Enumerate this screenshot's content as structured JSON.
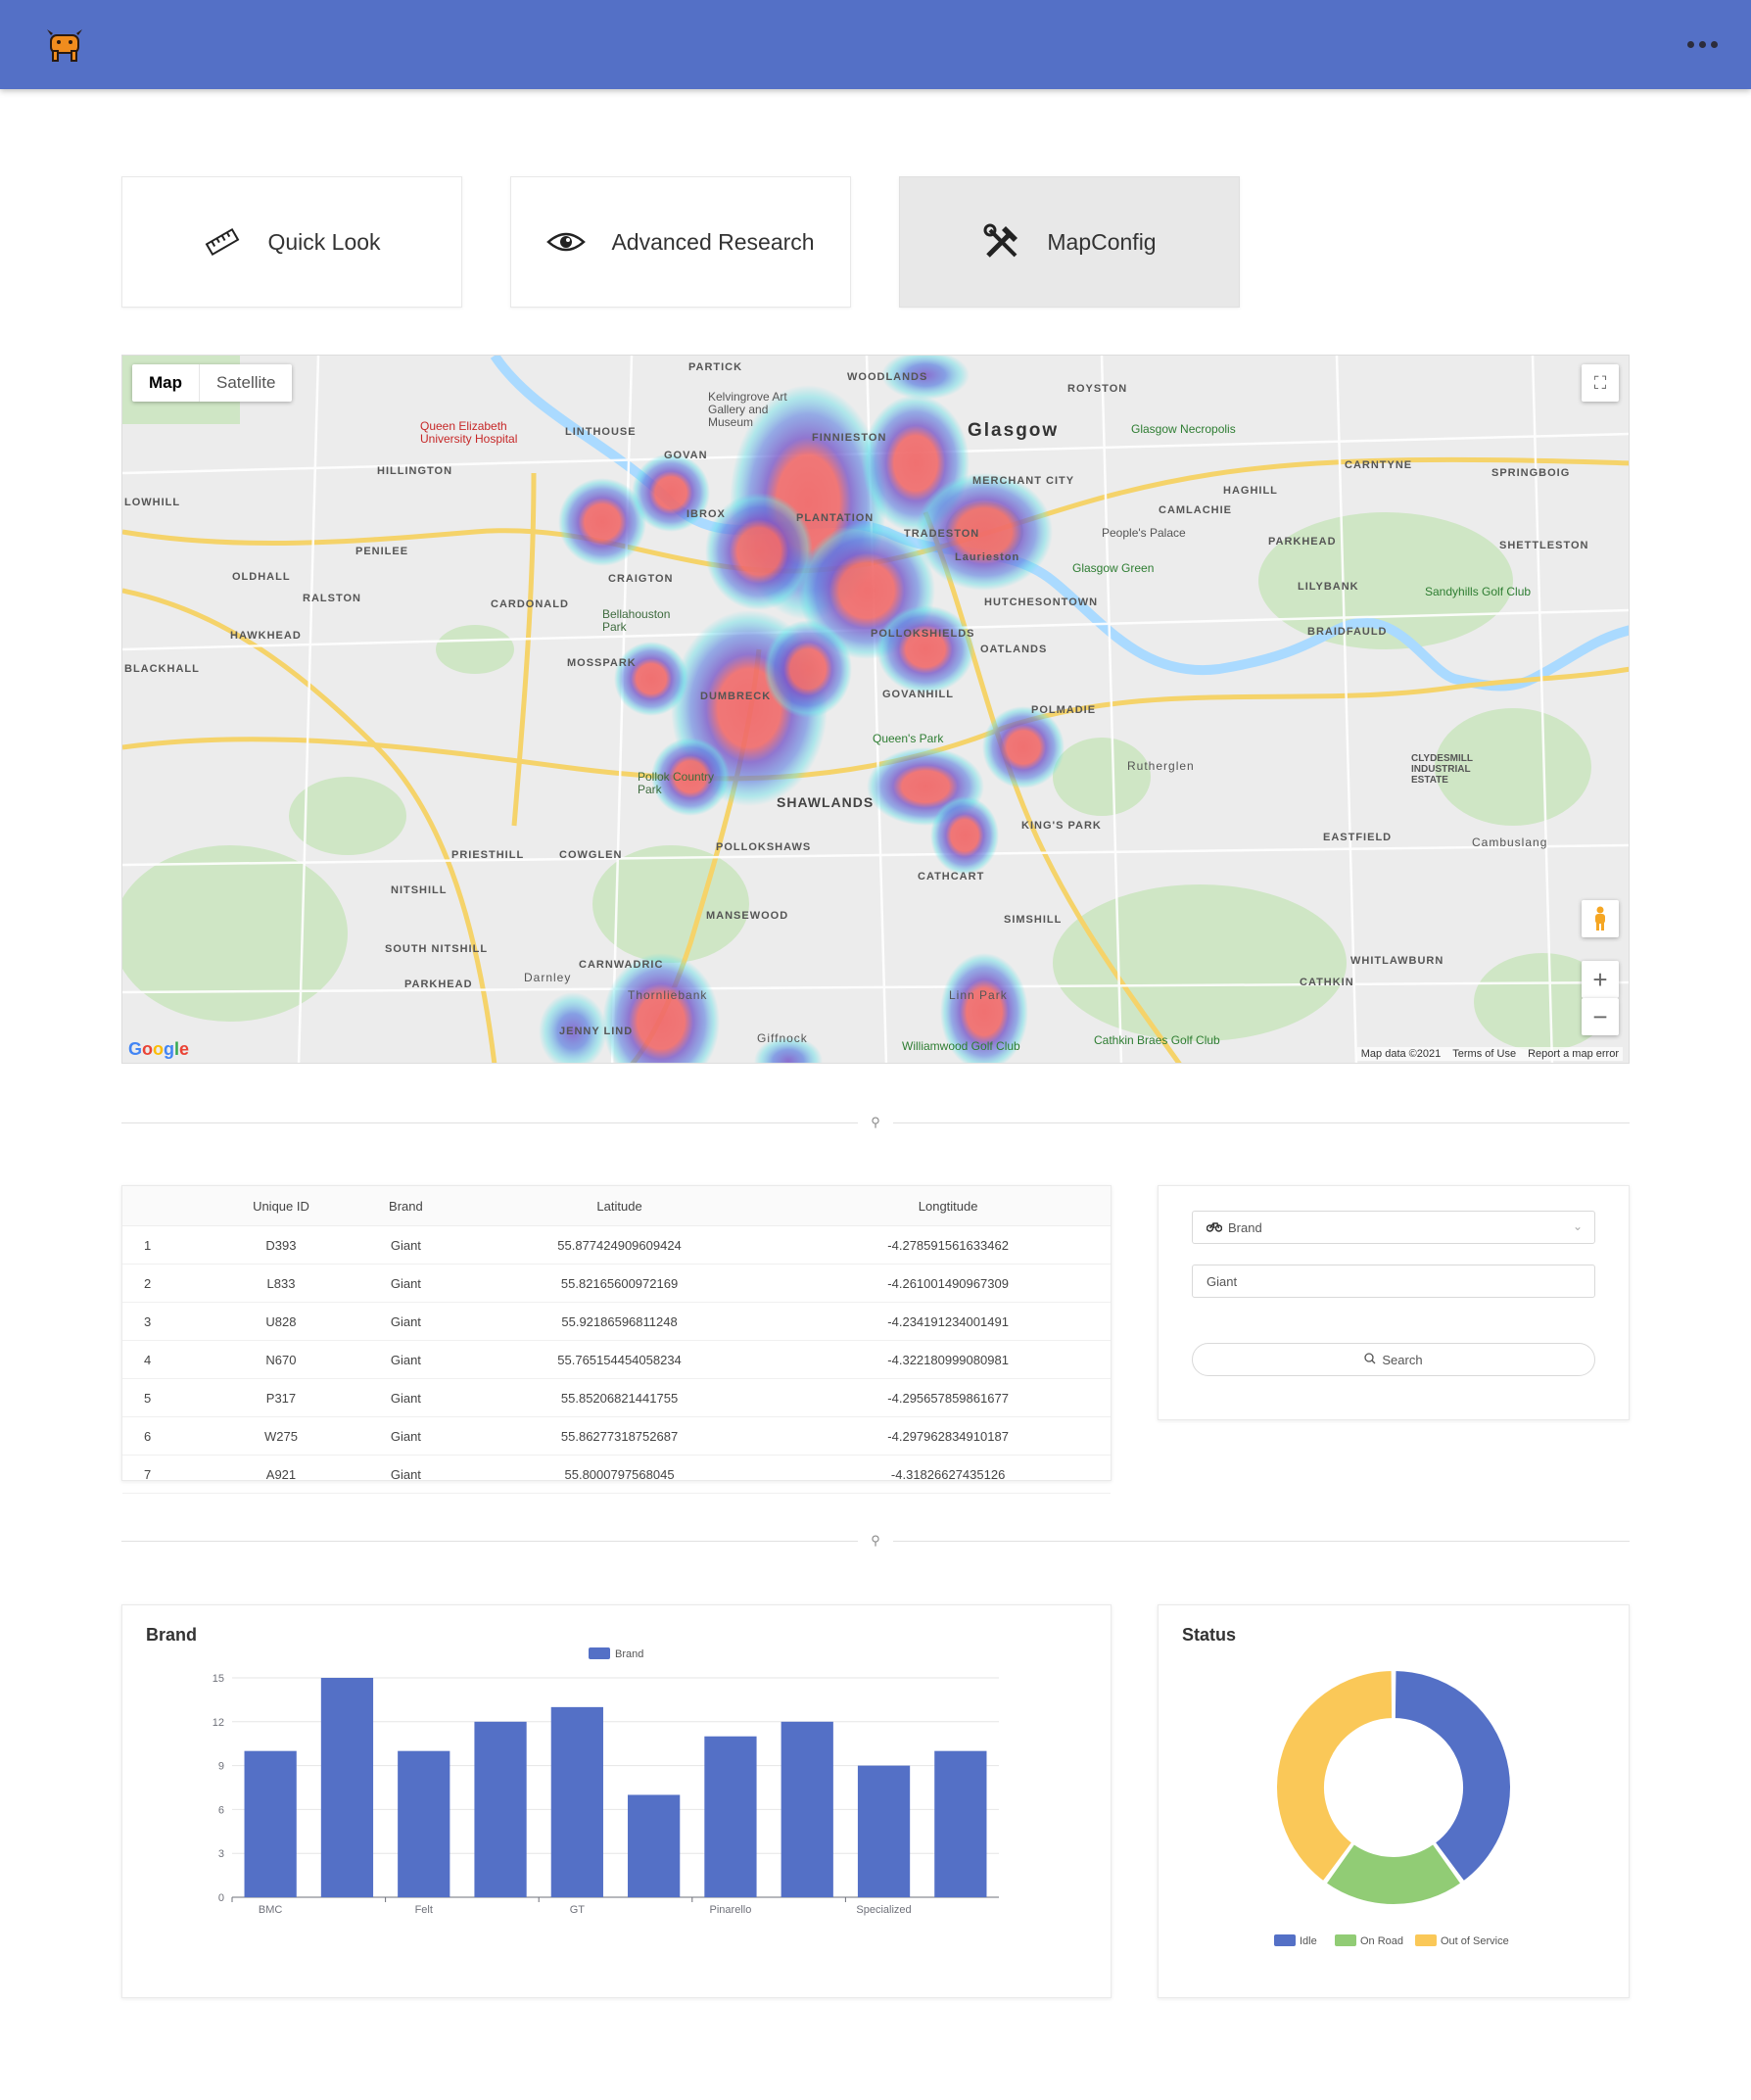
{
  "header": {
    "logo_icon": "bull-logo-icon",
    "menu_icon": "more-dots-icon",
    "bar_color": "#5470c6"
  },
  "nav": [
    {
      "label": "Quick Look",
      "icon": "ruler-icon",
      "active": false
    },
    {
      "label": "Advanced Research",
      "icon": "eye-icon",
      "active": false
    },
    {
      "label": "MapConfig",
      "icon": "tools-icon",
      "active": true
    }
  ],
  "map": {
    "type_map": "Map",
    "type_satellite": "Satellite",
    "brand": "Google",
    "attribution": "Map data ©2021",
    "terms": "Terms of Use",
    "report": "Report a map error",
    "places": [
      "PARTICK",
      "WOODLANDS",
      "ROYSTON",
      "Glasgow",
      "LINTHOUSE",
      "FINNIESTON",
      "GOVAN",
      "MERCHANT CITY",
      "CARNTYNE",
      "SPRINGBOIG",
      "HILLINGTON",
      "HAGHILL",
      "CAMLACHIE",
      "LOWHILL",
      "IBROX",
      "PLANTATION",
      "TRADESTON",
      "PARKHEAD",
      "SHETTLESTON",
      "PENILEE",
      "Laurieston",
      "OLDHALL",
      "CRAIGTON",
      "RALSTON",
      "CARDONALD",
      "HUTCHESONTOWN",
      "LILYBANK",
      "HAWKHEAD",
      "POLLOKSHIELDS",
      "BRAIDFAULD",
      "OATLANDS",
      "MOSSPARK",
      "BLACKHALL",
      "DUMBRECK",
      "GOVANHILL",
      "POLMADIE",
      "Rutherglen",
      "SHAWLANDS",
      "KING'S PARK",
      "PRIESTHILL",
      "COWGLEN",
      "POLLOKSHAWS",
      "EASTFIELD",
      "Cambuslang",
      "CATHCART",
      "NITSHILL",
      "MANSEWOOD",
      "SIMSHILL",
      "SOUTH NITSHILL",
      "WHITLAWBURN",
      "PARKHEAD",
      "Darnley",
      "CARNWADRIC",
      "CATHKIN",
      "Thornliebank",
      "Linn Park",
      "JENNY LIND",
      "Giffnock"
    ],
    "pois": [
      "Queen Elizabeth University Hospital",
      "Kelvingrove Art Gallery and Museum",
      "Glasgow Necropolis",
      "People's Palace",
      "Glasgow Green",
      "Sandyhills Golf Club",
      "Bellahouston Park",
      "Queen's Park",
      "Pollok Country Park",
      "CLYDESMILL INDUSTRIAL ESTATE",
      "Williamwood Golf Club",
      "Cathkin Braes Golf Club"
    ]
  },
  "table": {
    "columns": [
      "",
      "Unique ID",
      "Brand",
      "Latitude",
      "Longtitude"
    ],
    "rows": [
      [
        "1",
        "D393",
        "Giant",
        "55.877424909609424",
        "-4.278591561633462"
      ],
      [
        "2",
        "L833",
        "Giant",
        "55.82165600972169",
        "-4.261001490967309"
      ],
      [
        "3",
        "U828",
        "Giant",
        "55.92186596811248",
        "-4.234191234001491"
      ],
      [
        "4",
        "N670",
        "Giant",
        "55.765154454058234",
        "-4.322180999080981"
      ],
      [
        "5",
        "P317",
        "Giant",
        "55.85206821441755",
        "-4.295657859861677"
      ],
      [
        "6",
        "W275",
        "Giant",
        "55.86277318752687",
        "-4.297962834910187"
      ],
      [
        "7",
        "A921",
        "Giant",
        "55.8000797568045",
        "-4.31826627435126"
      ]
    ]
  },
  "search": {
    "select_value": "Brand",
    "select_icon": "bike-icon",
    "input_value": "Giant",
    "button_label": "Search",
    "button_icon": "search-icon"
  },
  "charts": {
    "brand_title": "Brand",
    "status_title": "Status"
  },
  "chart_data": [
    {
      "type": "bar",
      "title": "Brand",
      "legend": [
        "Brand"
      ],
      "categories": [
        "BMC",
        "",
        "Felt",
        "",
        "GT",
        "",
        "Pinarello",
        "",
        "Specialized",
        ""
      ],
      "series": [
        {
          "name": "Brand",
          "values": [
            10,
            15,
            10,
            12,
            13,
            7,
            11,
            12,
            9,
            10
          ]
        }
      ],
      "ylim": [
        0,
        15
      ],
      "yticks": [
        0,
        3,
        6,
        9,
        12,
        15
      ],
      "color": "#5470c6"
    },
    {
      "type": "pie",
      "title": "Status",
      "donut": true,
      "labels": [
        "Idle",
        "On Road",
        "Out of Service"
      ],
      "values": [
        40,
        20,
        40
      ],
      "colors": [
        "#5470c6",
        "#91cc75",
        "#fac858"
      ]
    }
  ]
}
